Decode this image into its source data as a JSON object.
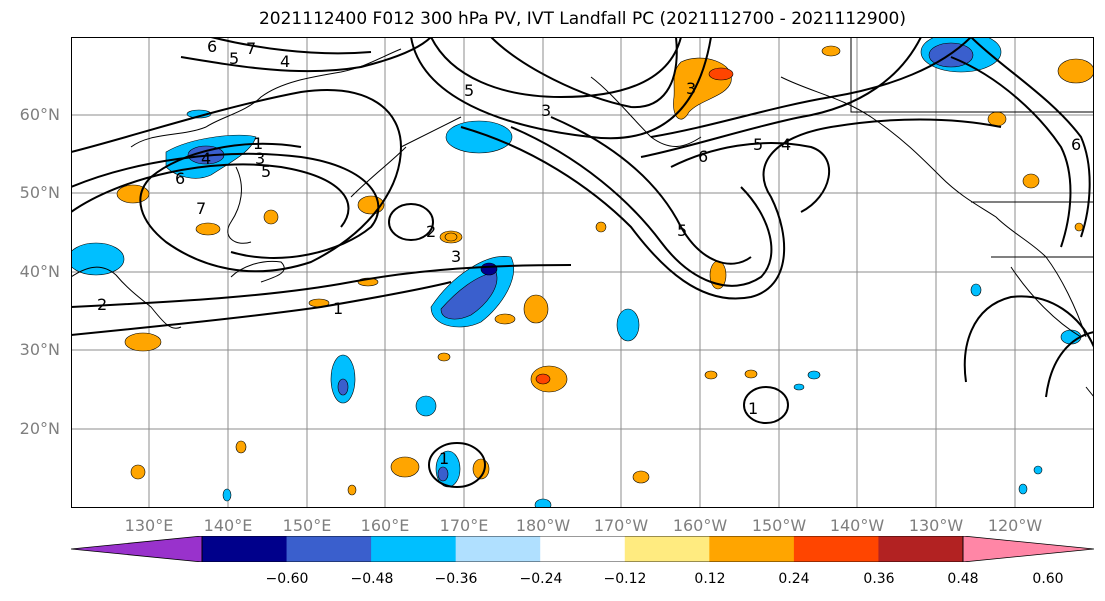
{
  "title": "2021112400 F012 300 hPa PV, IVT Landfall PC (2021112700 - 2021112900)",
  "latitude_labels": [
    "60°N",
    "50°N",
    "40°N",
    "30°N",
    "20°N"
  ],
  "longitude_labels": [
    "130°E",
    "140°E",
    "150°E",
    "160°E",
    "170°E",
    "180°W",
    "170°W",
    "160°W",
    "150°W",
    "140°W",
    "130°W",
    "120°W"
  ],
  "colorbar": {
    "ticks": [
      "−0.60",
      "−0.48",
      "−0.36",
      "−0.24",
      "−0.12",
      "0.12",
      "0.24",
      "0.36",
      "0.48",
      "0.60"
    ],
    "colors": [
      "#9932cc",
      "#00008b",
      "#3a5fcd",
      "#00bfff",
      "#b0e0ff",
      "#ffffff",
      "#ffeb80",
      "#ffa500",
      "#ff4500",
      "#b22222",
      "#ff86a6"
    ]
  },
  "contour_labels": [
    "6",
    "7",
    "5",
    "4",
    "1",
    "3",
    "2",
    "6",
    "7",
    "1",
    "2",
    "3",
    "5",
    "4",
    "5",
    "3",
    "6",
    "5",
    "4",
    "3",
    "5",
    "1",
    "1",
    "6"
  ],
  "colors": {
    "graticule": "#8c8c8c",
    "coastline": "#000000",
    "contour": "#000000",
    "axis_label": "#7f7f7f"
  }
}
